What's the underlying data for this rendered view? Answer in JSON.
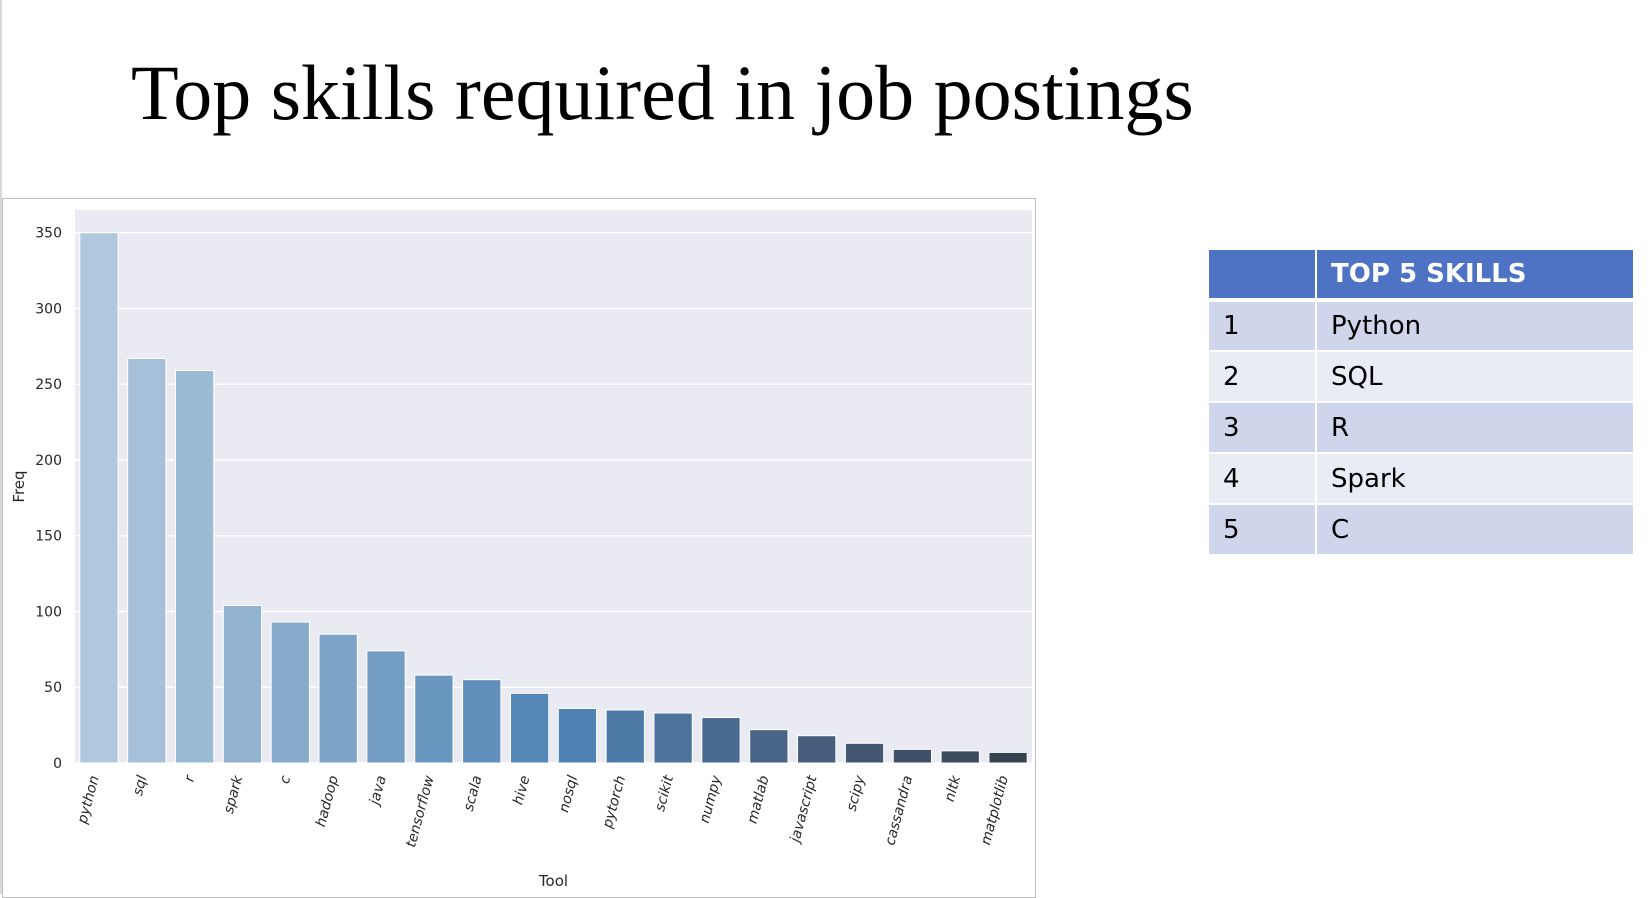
{
  "slide": {
    "title": "Top skills required in job postings"
  },
  "chart_data": {
    "type": "bar",
    "title": "",
    "xlabel": "Tool",
    "ylabel": "Freq",
    "ylim": [
      0,
      365
    ],
    "yticks": [
      0,
      50,
      100,
      150,
      200,
      250,
      300,
      350
    ],
    "grid": true,
    "categories": [
      "python",
      "sql",
      "r",
      "spark",
      "c",
      "hadoop",
      "java",
      "tensorflow",
      "scala",
      "hive",
      "nosql",
      "pytorch",
      "scikit",
      "numpy",
      "matlab",
      "javascript",
      "scipy",
      "cassandra",
      "nltk",
      "matplotlib"
    ],
    "values": [
      350,
      267,
      259,
      104,
      93,
      85,
      74,
      58,
      55,
      46,
      36,
      35,
      33,
      30,
      22,
      18,
      13,
      9,
      8,
      7
    ],
    "colors": [
      "#afc8dd",
      "#a5c0d8",
      "#9bbad4",
      "#91b3d0",
      "#87abcb",
      "#7da4c7",
      "#739dc3",
      "#6996bf",
      "#608fbb",
      "#5688b7",
      "#4e81b1",
      "#4d7aa6",
      "#4c739c",
      "#4a6b91",
      "#486487",
      "#465d7d",
      "#435672",
      "#404f68",
      "#3c4a5e",
      "#384352"
    ],
    "plot_background": "#eaeaf2"
  },
  "table": {
    "header_color": "#4f73c4",
    "header": [
      "",
      "TOP 5 SKILLS"
    ],
    "rows": [
      {
        "rank": "1",
        "skill": "Python"
      },
      {
        "rank": "2",
        "skill": "SQL"
      },
      {
        "rank": "3",
        "skill": "R"
      },
      {
        "rank": "4",
        "skill": "Spark"
      },
      {
        "rank": "5",
        "skill": "C"
      }
    ]
  }
}
